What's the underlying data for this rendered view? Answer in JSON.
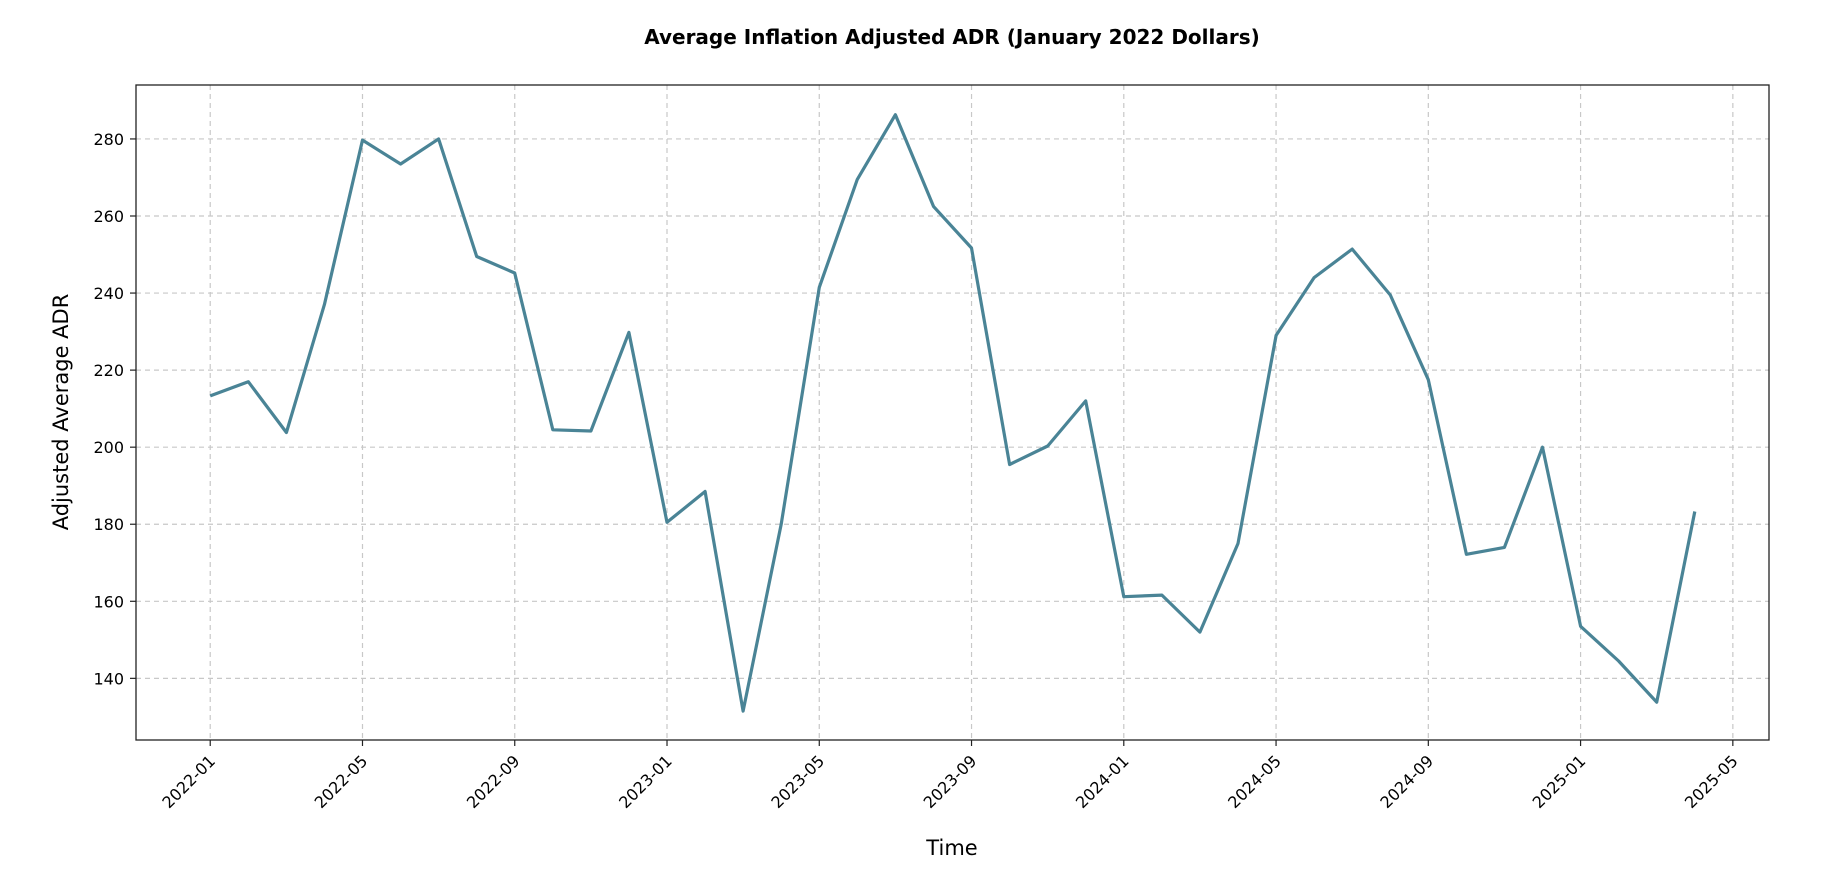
{
  "chart_data": {
    "type": "line",
    "title": "Average Inflation Adjusted ADR (January 2022 Dollars)",
    "xlabel": "Time",
    "ylabel": "Adjusted Average ADR",
    "ylim": [
      124,
      294
    ],
    "xlim_months_from_2022_01": [
      -1.95,
      40.95
    ],
    "grid": true,
    "line_color": "#4a8496",
    "yticks": [
      140,
      160,
      180,
      200,
      220,
      240,
      260,
      280
    ],
    "xticks": [
      {
        "label": "2022-01",
        "month": 0
      },
      {
        "label": "2022-05",
        "month": 4
      },
      {
        "label": "2022-09",
        "month": 8
      },
      {
        "label": "2023-01",
        "month": 12
      },
      {
        "label": "2023-05",
        "month": 16
      },
      {
        "label": "2023-09",
        "month": 20
      },
      {
        "label": "2024-01",
        "month": 24
      },
      {
        "label": "2024-05",
        "month": 28
      },
      {
        "label": "2024-09",
        "month": 32
      },
      {
        "label": "2025-01",
        "month": 36
      },
      {
        "label": "2025-05",
        "month": 40
      }
    ],
    "series": [
      {
        "name": "Adjusted Average ADR",
        "x": [
          "2022-01",
          "2022-02",
          "2022-03",
          "2022-04",
          "2022-05",
          "2022-06",
          "2022-07",
          "2022-08",
          "2022-09",
          "2022-10",
          "2022-11",
          "2022-12",
          "2023-01",
          "2023-02",
          "2023-03",
          "2023-04",
          "2023-05",
          "2023-06",
          "2023-07",
          "2023-08",
          "2023-09",
          "2023-10",
          "2023-11",
          "2023-12",
          "2024-01",
          "2024-02",
          "2024-03",
          "2024-04",
          "2024-05",
          "2024-06",
          "2024-07",
          "2024-08",
          "2024-09",
          "2024-10",
          "2024-11",
          "2024-12",
          "2025-01",
          "2025-02",
          "2025-03",
          "2025-04"
        ],
        "values": [
          213.3,
          217,
          203.8,
          237,
          279.7,
          273.5,
          280,
          249.5,
          245.2,
          204.5,
          204.2,
          229.8,
          180.5,
          188.5,
          131.5,
          180,
          241.5,
          269.5,
          286.3,
          262.5,
          251.7,
          195.5,
          200.3,
          212,
          161.2,
          161.6,
          152,
          175,
          229,
          244,
          251.4,
          239.5,
          217.5,
          172.2,
          174,
          200,
          153.5,
          144.5,
          133.8,
          183.3
        ]
      }
    ]
  }
}
